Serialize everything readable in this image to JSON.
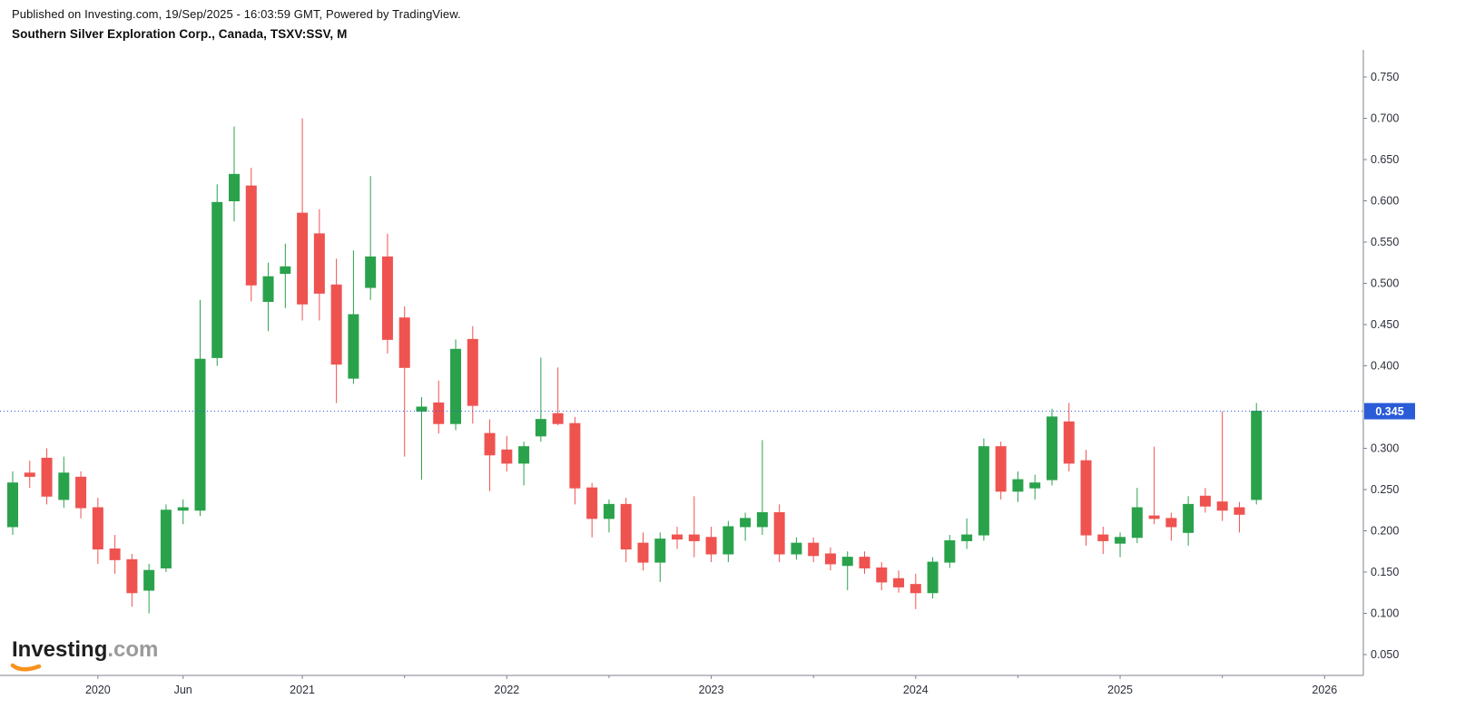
{
  "header": {
    "published_line": "Published on Investing.com, 19/Sep/2025 - 16:03:59 GMT, Powered by TradingView.",
    "instrument_line": "Southern Silver Exploration Corp., Canada, TSXV:SSV, M"
  },
  "logo": {
    "main": "Investing",
    "suffix": ".com",
    "swoosh_color": "#f7931e"
  },
  "chart_data": {
    "type": "candlestick",
    "symbol": "TSXV:SSV",
    "interval": "M",
    "current_price": "0.345",
    "colors": {
      "up": "#2aa24c",
      "down": "#ef5350",
      "price_line": "#2a5cd8",
      "axis_text": "#2a2e39",
      "axis_line": "#7f838d",
      "badge_text": "#ffffff"
    },
    "price_axis": {
      "min": 0.05,
      "max": 0.75,
      "step": 0.05,
      "labels": [
        "0.750",
        "0.700",
        "0.650",
        "0.600",
        "0.550",
        "0.500",
        "0.450",
        "0.400",
        "0.300",
        "0.250",
        "0.200",
        "0.150",
        "0.100",
        "0.050"
      ]
    },
    "x_axis": {
      "labels": [
        {
          "text": "2020",
          "i": 5
        },
        {
          "text": "Jun",
          "i": 10
        },
        {
          "text": "2021",
          "i": 17
        },
        {
          "text": "2022",
          "i": 29
        },
        {
          "text": "2023",
          "i": 41
        },
        {
          "text": "2024",
          "i": 53
        },
        {
          "text": "2025",
          "i": 65
        },
        {
          "text": "2026",
          "i": 77
        }
      ],
      "minor_tick_indices": [
        23,
        35,
        47,
        59,
        71
      ]
    },
    "candles": [
      {
        "t": "2019-08",
        "o": 0.205,
        "h": 0.272,
        "l": 0.195,
        "c": 0.258
      },
      {
        "t": "2019-09",
        "o": 0.27,
        "h": 0.285,
        "l": 0.252,
        "c": 0.266
      },
      {
        "t": "2019-10",
        "o": 0.288,
        "h": 0.3,
        "l": 0.232,
        "c": 0.242
      },
      {
        "t": "2019-11",
        "o": 0.238,
        "h": 0.29,
        "l": 0.228,
        "c": 0.27
      },
      {
        "t": "2019-12",
        "o": 0.265,
        "h": 0.272,
        "l": 0.215,
        "c": 0.228
      },
      {
        "t": "2020-01",
        "o": 0.228,
        "h": 0.24,
        "l": 0.16,
        "c": 0.178
      },
      {
        "t": "2020-02",
        "o": 0.178,
        "h": 0.195,
        "l": 0.148,
        "c": 0.165
      },
      {
        "t": "2020-03",
        "o": 0.165,
        "h": 0.172,
        "l": 0.108,
        "c": 0.125
      },
      {
        "t": "2020-04",
        "o": 0.128,
        "h": 0.16,
        "l": 0.1,
        "c": 0.152
      },
      {
        "t": "2020-05",
        "o": 0.155,
        "h": 0.232,
        "l": 0.15,
        "c": 0.225
      },
      {
        "t": "2020-06",
        "o": 0.225,
        "h": 0.238,
        "l": 0.208,
        "c": 0.228
      },
      {
        "t": "2020-07",
        "o": 0.225,
        "h": 0.48,
        "l": 0.218,
        "c": 0.408
      },
      {
        "t": "2020-08",
        "o": 0.41,
        "h": 0.62,
        "l": 0.4,
        "c": 0.598
      },
      {
        "t": "2020-09",
        "o": 0.6,
        "h": 0.69,
        "l": 0.575,
        "c": 0.632
      },
      {
        "t": "2020-10",
        "o": 0.618,
        "h": 0.64,
        "l": 0.478,
        "c": 0.498
      },
      {
        "t": "2020-11",
        "o": 0.478,
        "h": 0.525,
        "l": 0.442,
        "c": 0.508
      },
      {
        "t": "2020-12",
        "o": 0.512,
        "h": 0.548,
        "l": 0.47,
        "c": 0.52
      },
      {
        "t": "2021-01",
        "o": 0.585,
        "h": 0.7,
        "l": 0.455,
        "c": 0.475
      },
      {
        "t": "2021-02",
        "o": 0.56,
        "h": 0.59,
        "l": 0.455,
        "c": 0.488
      },
      {
        "t": "2021-03",
        "o": 0.498,
        "h": 0.53,
        "l": 0.355,
        "c": 0.402
      },
      {
        "t": "2021-04",
        "o": 0.385,
        "h": 0.54,
        "l": 0.378,
        "c": 0.462
      },
      {
        "t": "2021-05",
        "o": 0.495,
        "h": 0.63,
        "l": 0.48,
        "c": 0.532
      },
      {
        "t": "2021-06",
        "o": 0.532,
        "h": 0.56,
        "l": 0.415,
        "c": 0.432
      },
      {
        "t": "2021-07",
        "o": 0.458,
        "h": 0.472,
        "l": 0.29,
        "c": 0.398
      },
      {
        "t": "2021-08",
        "o": 0.345,
        "h": 0.362,
        "l": 0.262,
        "c": 0.35
      },
      {
        "t": "2021-09",
        "o": 0.355,
        "h": 0.382,
        "l": 0.318,
        "c": 0.33
      },
      {
        "t": "2021-10",
        "o": 0.33,
        "h": 0.432,
        "l": 0.322,
        "c": 0.42
      },
      {
        "t": "2021-11",
        "o": 0.432,
        "h": 0.448,
        "l": 0.33,
        "c": 0.352
      },
      {
        "t": "2021-12",
        "o": 0.318,
        "h": 0.335,
        "l": 0.248,
        "c": 0.292
      },
      {
        "t": "2022-01",
        "o": 0.298,
        "h": 0.315,
        "l": 0.272,
        "c": 0.282
      },
      {
        "t": "2022-02",
        "o": 0.282,
        "h": 0.308,
        "l": 0.255,
        "c": 0.302
      },
      {
        "t": "2022-03",
        "o": 0.315,
        "h": 0.41,
        "l": 0.308,
        "c": 0.335
      },
      {
        "t": "2022-04",
        "o": 0.342,
        "h": 0.398,
        "l": 0.328,
        "c": 0.33
      },
      {
        "t": "2022-05",
        "o": 0.33,
        "h": 0.338,
        "l": 0.232,
        "c": 0.252
      },
      {
        "t": "2022-06",
        "o": 0.252,
        "h": 0.258,
        "l": 0.192,
        "c": 0.215
      },
      {
        "t": "2022-07",
        "o": 0.215,
        "h": 0.238,
        "l": 0.198,
        "c": 0.232
      },
      {
        "t": "2022-08",
        "o": 0.232,
        "h": 0.24,
        "l": 0.162,
        "c": 0.178
      },
      {
        "t": "2022-09",
        "o": 0.185,
        "h": 0.198,
        "l": 0.152,
        "c": 0.162
      },
      {
        "t": "2022-10",
        "o": 0.162,
        "h": 0.198,
        "l": 0.138,
        "c": 0.19
      },
      {
        "t": "2022-11",
        "o": 0.195,
        "h": 0.205,
        "l": 0.178,
        "c": 0.19
      },
      {
        "t": "2022-12",
        "o": 0.195,
        "h": 0.242,
        "l": 0.168,
        "c": 0.188
      },
      {
        "t": "2023-01",
        "o": 0.192,
        "h": 0.205,
        "l": 0.162,
        "c": 0.172
      },
      {
        "t": "2023-02",
        "o": 0.172,
        "h": 0.212,
        "l": 0.162,
        "c": 0.205
      },
      {
        "t": "2023-03",
        "o": 0.205,
        "h": 0.222,
        "l": 0.188,
        "c": 0.215
      },
      {
        "t": "2023-04",
        "o": 0.205,
        "h": 0.31,
        "l": 0.195,
        "c": 0.222
      },
      {
        "t": "2023-05",
        "o": 0.222,
        "h": 0.232,
        "l": 0.162,
        "c": 0.172
      },
      {
        "t": "2023-06",
        "o": 0.172,
        "h": 0.192,
        "l": 0.165,
        "c": 0.185
      },
      {
        "t": "2023-07",
        "o": 0.185,
        "h": 0.192,
        "l": 0.162,
        "c": 0.17
      },
      {
        "t": "2023-08",
        "o": 0.172,
        "h": 0.18,
        "l": 0.152,
        "c": 0.16
      },
      {
        "t": "2023-09",
        "o": 0.158,
        "h": 0.175,
        "l": 0.128,
        "c": 0.168
      },
      {
        "t": "2023-10",
        "o": 0.168,
        "h": 0.175,
        "l": 0.148,
        "c": 0.155
      },
      {
        "t": "2023-11",
        "o": 0.155,
        "h": 0.162,
        "l": 0.128,
        "c": 0.138
      },
      {
        "t": "2023-12",
        "o": 0.142,
        "h": 0.152,
        "l": 0.125,
        "c": 0.132
      },
      {
        "t": "2024-01",
        "o": 0.135,
        "h": 0.148,
        "l": 0.105,
        "c": 0.125
      },
      {
        "t": "2024-02",
        "o": 0.125,
        "h": 0.168,
        "l": 0.118,
        "c": 0.162
      },
      {
        "t": "2024-03",
        "o": 0.162,
        "h": 0.195,
        "l": 0.155,
        "c": 0.188
      },
      {
        "t": "2024-04",
        "o": 0.188,
        "h": 0.215,
        "l": 0.178,
        "c": 0.195
      },
      {
        "t": "2024-05",
        "o": 0.195,
        "h": 0.312,
        "l": 0.188,
        "c": 0.302
      },
      {
        "t": "2024-06",
        "o": 0.302,
        "h": 0.308,
        "l": 0.238,
        "c": 0.248
      },
      {
        "t": "2024-07",
        "o": 0.248,
        "h": 0.272,
        "l": 0.235,
        "c": 0.262
      },
      {
        "t": "2024-08",
        "o": 0.252,
        "h": 0.268,
        "l": 0.238,
        "c": 0.258
      },
      {
        "t": "2024-09",
        "o": 0.262,
        "h": 0.348,
        "l": 0.255,
        "c": 0.338
      },
      {
        "t": "2024-10",
        "o": 0.332,
        "h": 0.355,
        "l": 0.272,
        "c": 0.282
      },
      {
        "t": "2024-11",
        "o": 0.285,
        "h": 0.298,
        "l": 0.182,
        "c": 0.195
      },
      {
        "t": "2024-12",
        "o": 0.195,
        "h": 0.205,
        "l": 0.172,
        "c": 0.188
      },
      {
        "t": "2025-01",
        "o": 0.185,
        "h": 0.198,
        "l": 0.168,
        "c": 0.192
      },
      {
        "t": "2025-02",
        "o": 0.192,
        "h": 0.252,
        "l": 0.185,
        "c": 0.228
      },
      {
        "t": "2025-03",
        "o": 0.218,
        "h": 0.302,
        "l": 0.208,
        "c": 0.215
      },
      {
        "t": "2025-04",
        "o": 0.215,
        "h": 0.222,
        "l": 0.188,
        "c": 0.205
      },
      {
        "t": "2025-05",
        "o": 0.198,
        "h": 0.242,
        "l": 0.182,
        "c": 0.232
      },
      {
        "t": "2025-06",
        "o": 0.242,
        "h": 0.252,
        "l": 0.222,
        "c": 0.23
      },
      {
        "t": "2025-07",
        "o": 0.235,
        "h": 0.345,
        "l": 0.212,
        "c": 0.225
      },
      {
        "t": "2025-08",
        "o": 0.228,
        "h": 0.235,
        "l": 0.198,
        "c": 0.22
      },
      {
        "t": "2025-09",
        "o": 0.238,
        "h": 0.355,
        "l": 0.232,
        "c": 0.345
      }
    ]
  }
}
